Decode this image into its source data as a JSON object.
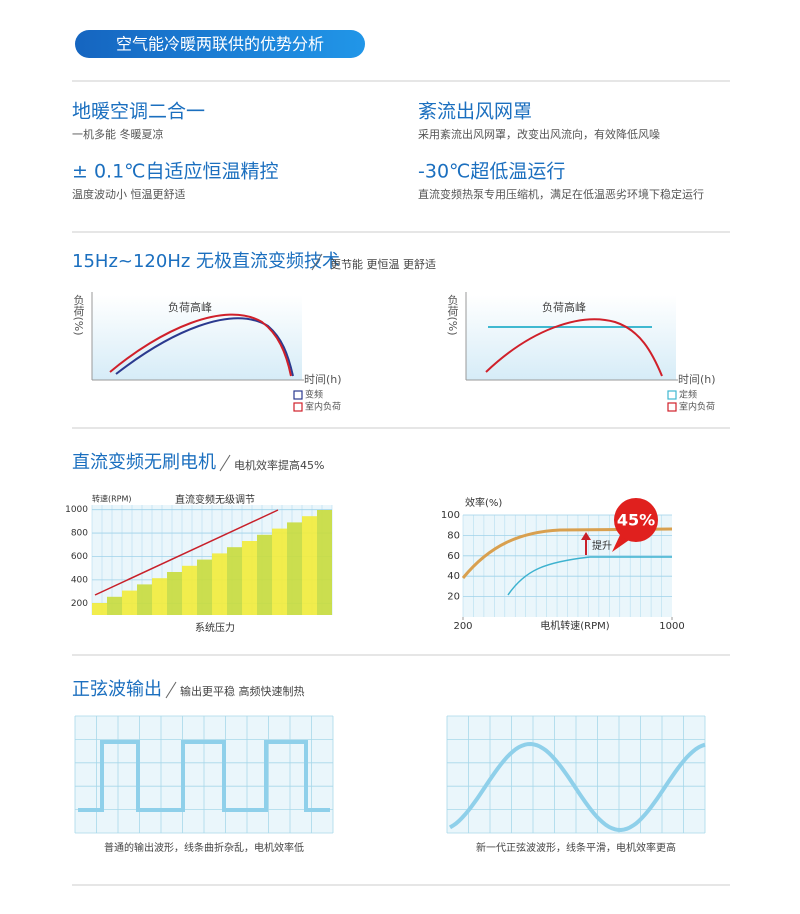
{
  "header": {
    "title": "空气能冷暖两联供的优势分析"
  },
  "features": [
    {
      "title": "地暖空调二合一",
      "desc": "一机多能 冬暖夏凉"
    },
    {
      "title": "紊流出风网罩",
      "desc": "采用紊流出风网罩，改变出风流向，有效降低风噪"
    },
    {
      "title": "± 0.1℃自适应恒温精控",
      "desc": "温度波动小 恒温更舒适"
    },
    {
      "title": "-30℃超低温运行",
      "desc": "直流变频热泵专用压缩机，满足在低温恶劣环境下稳定运行"
    }
  ],
  "sections": [
    {
      "title": "15Hz~120Hz 无极直流变频技术",
      "subtitle": "更节能 更恒温 更舒适",
      "charts": [
        {
          "title": "负荷高峰",
          "y_label": "负荷(%)",
          "x_label": "时间(h)",
          "legend": [
            {
              "name": "变频",
              "color": "#2b3a8f"
            },
            {
              "name": "室内负荷",
              "color": "#d0202a"
            }
          ]
        },
        {
          "title": "负荷高峰",
          "y_label": "负荷(%)",
          "x_label": "时间(h)",
          "legend": [
            {
              "name": "定频",
              "color": "#3fb8d0"
            },
            {
              "name": "室内负荷",
              "color": "#d0202a"
            }
          ]
        }
      ]
    },
    {
      "title": "直流变频无刷电机",
      "subtitle": "电机效率提高45%",
      "charts": [
        {
          "title": "直流变频无级调节",
          "y_label": "转速(RPM)",
          "x_label": "系统压力",
          "ylim": [
            100,
            1040
          ],
          "yticks": [
            1000,
            800,
            600,
            400,
            200
          ]
        },
        {
          "y_label": "效率(%)",
          "x_label": "电机转速(RPM)",
          "ylim": [
            0,
            100
          ],
          "yticks": [
            100,
            80,
            60,
            40,
            20
          ],
          "xlim": [
            200,
            1000
          ],
          "xticks": [
            200,
            1000
          ],
          "badge": "45%",
          "annotation": "提升"
        }
      ]
    },
    {
      "title": "正弦波输出",
      "subtitle": "输出更平稳 高频快速制热",
      "captions": [
        "普通的输出波形，线条曲折杂乱，电机效率低",
        "新一代正弦波波形，线条平滑，电机效率更高"
      ]
    }
  ]
}
